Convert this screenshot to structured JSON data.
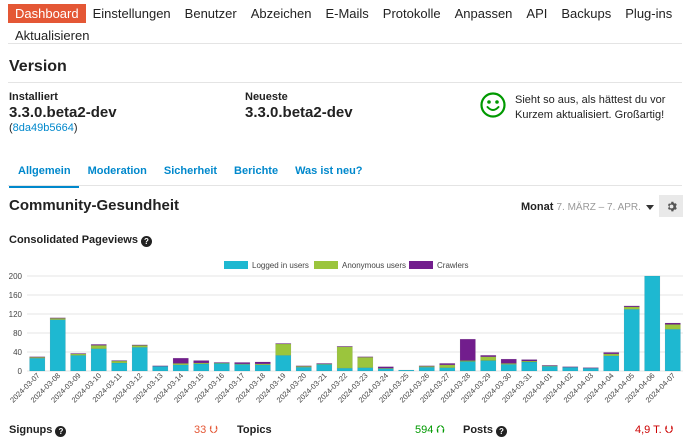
{
  "nav": [
    {
      "label": "Dashboard",
      "active": true
    },
    {
      "label": "Einstellungen"
    },
    {
      "label": "Benutzer"
    },
    {
      "label": "Abzeichen"
    },
    {
      "label": "E-Mails"
    },
    {
      "label": "Protokolle"
    },
    {
      "label": "Anpassen"
    },
    {
      "label": "API"
    },
    {
      "label": "Backups"
    },
    {
      "label": "Plug-ins"
    },
    {
      "label": "Aktualisieren"
    }
  ],
  "version": {
    "title": "Version",
    "installed_label": "Installiert",
    "installed_value": "3.3.0.beta2-dev",
    "hash_open": "(",
    "hash": "8da49b5664",
    "hash_close": ")",
    "latest_label": "Neueste",
    "latest_value": "3.3.0.beta2-dev",
    "status": "Sieht so aus, als hättest du vor Kurzem aktualisiert. Großartig!"
  },
  "tabs": [
    {
      "label": "Allgemein",
      "active": true
    },
    {
      "label": "Moderation"
    },
    {
      "label": "Sicherheit"
    },
    {
      "label": "Berichte"
    },
    {
      "label": "Was ist neu?"
    }
  ],
  "community": {
    "title": "Community-Gesundheit",
    "period_label": "Monat",
    "period_range": "7. MÄRZ – 7. APR."
  },
  "chart_data": {
    "type": "bar",
    "stacked": true,
    "title": "Consolidated Pageviews",
    "ylim": [
      0,
      200
    ],
    "yticks": [
      0,
      40,
      80,
      120,
      160,
      200
    ],
    "grid": true,
    "legend_position": "top",
    "categories": [
      "2024-03-07",
      "2024-03-08",
      "2024-03-09",
      "2024-03-10",
      "2024-03-11",
      "2024-03-12",
      "2024-03-13",
      "2024-03-14",
      "2024-03-15",
      "2024-03-16",
      "2024-03-17",
      "2024-03-18",
      "2024-03-19",
      "2024-03-20",
      "2024-03-21",
      "2024-03-22",
      "2024-03-23",
      "2024-03-24",
      "2024-03-25",
      "2024-03-26",
      "2024-03-27",
      "2024-03-28",
      "2024-03-29",
      "2024-03-30",
      "2024-03-31",
      "2024-04-01",
      "2024-04-02",
      "2024-04-03",
      "2024-04-04",
      "2024-04-05",
      "2024-04-06",
      "2024-04-07"
    ],
    "series": [
      {
        "name": "Logged in users",
        "color": "#1eb8d1",
        "values": [
          27,
          108,
          33,
          47,
          17,
          50,
          10,
          13,
          15,
          16,
          14,
          13,
          33,
          8,
          14,
          6,
          7,
          5,
          2,
          8,
          7,
          20,
          22,
          14,
          19,
          10,
          8,
          6,
          32,
          130,
          200,
          88
        ]
      },
      {
        "name": "Anonymous users",
        "color": "#9bc53d",
        "values": [
          2,
          3,
          3,
          7,
          4,
          4,
          0,
          3,
          2,
          1,
          1,
          2,
          24,
          2,
          1,
          45,
          22,
          1,
          0,
          2,
          6,
          2,
          8,
          2,
          2,
          1,
          0,
          0,
          4,
          5,
          0,
          10
        ]
      },
      {
        "name": "Crawlers",
        "color": "#721d8d",
        "values": [
          1,
          1,
          1,
          2,
          1,
          1,
          1,
          11,
          5,
          1,
          3,
          4,
          1,
          1,
          1,
          1,
          1,
          3,
          0,
          1,
          3,
          45,
          3,
          9,
          3,
          1,
          1,
          1,
          3,
          2,
          0,
          3
        ]
      }
    ]
  },
  "stats": [
    {
      "label": "Signups",
      "value": "33",
      "trend": "down"
    },
    {
      "label": "Topics",
      "value": "594",
      "trend": "up"
    },
    {
      "label": "Posts",
      "value": "4,9 T.",
      "trend": "down"
    }
  ],
  "icons": {
    "help": "?",
    "smiley": "smiley-icon",
    "gear": "gear-icon"
  }
}
